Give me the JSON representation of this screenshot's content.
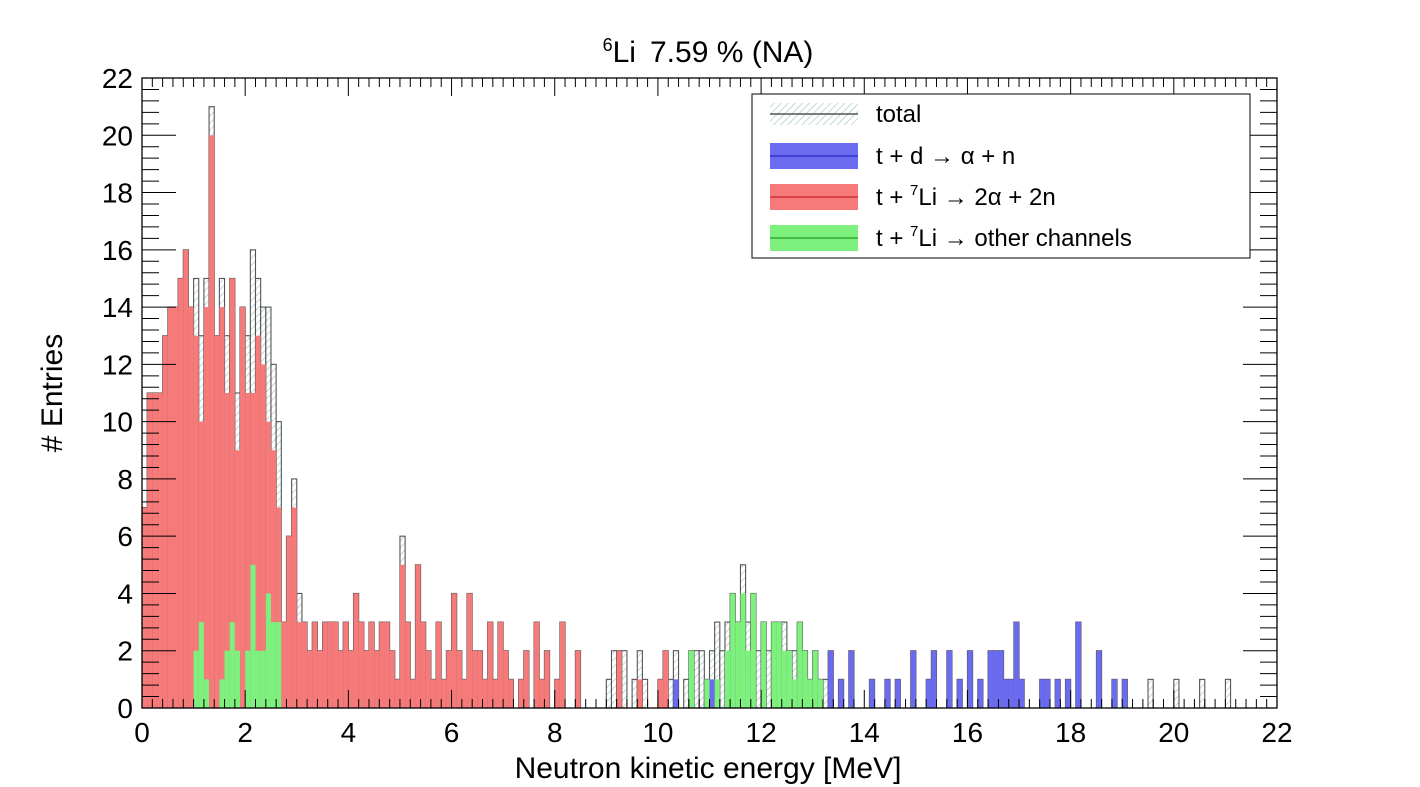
{
  "chart_data": {
    "type": "histogram",
    "title": "7.59 % (NA)",
    "title_isotope": "Li",
    "title_mass_number": "6",
    "xlabel": "Neutron kinetic energy [MeV]",
    "ylabel": "# Entries",
    "xlim": [
      0,
      22
    ],
    "ylim": [
      0,
      22
    ],
    "x_ticks": [
      "0",
      "2",
      "4",
      "6",
      "8",
      "10",
      "12",
      "14",
      "16",
      "18",
      "20",
      "22"
    ],
    "y_ticks": [
      "0",
      "2",
      "4",
      "6",
      "8",
      "10",
      "12",
      "14",
      "16",
      "18",
      "20",
      "22"
    ],
    "bin_width": 0.1,
    "grid": false,
    "legend_position": "top-right",
    "legend": [
      {
        "pre": "total",
        "sup": "",
        "post": "",
        "color": "#ffffff",
        "hatched": true
      },
      {
        "pre": "t + d → α + n",
        "sup": "",
        "post": "",
        "color": "#6b6bf0"
      },
      {
        "pre": "t + ",
        "sup": "7",
        "post": "Li → 2α + 2n",
        "color": "#f77a7a"
      },
      {
        "pre": "t + ",
        "sup": "7",
        "post": "Li → other channels",
        "color": "#7df07d"
      }
    ],
    "series": [
      {
        "name": "t + d → α + n",
        "color": "#6b6bf0",
        "bins": [
          [
            10.3,
            1
          ],
          [
            11.0,
            1
          ],
          [
            11.3,
            1
          ],
          [
            11.7,
            1
          ],
          [
            12.4,
            1
          ],
          [
            13.3,
            2
          ],
          [
            13.5,
            1
          ],
          [
            13.7,
            2
          ],
          [
            14.1,
            1
          ],
          [
            14.4,
            1
          ],
          [
            14.6,
            1
          ],
          [
            14.9,
            2
          ],
          [
            15.2,
            1
          ],
          [
            15.3,
            2
          ],
          [
            15.6,
            2
          ],
          [
            15.8,
            1
          ],
          [
            16.0,
            2
          ],
          [
            16.2,
            1
          ],
          [
            16.4,
            2
          ],
          [
            16.5,
            2
          ],
          [
            16.6,
            2
          ],
          [
            16.7,
            1
          ],
          [
            16.8,
            1
          ],
          [
            16.9,
            3
          ],
          [
            17.0,
            1
          ],
          [
            17.4,
            1
          ],
          [
            17.5,
            1
          ],
          [
            17.7,
            1
          ],
          [
            17.9,
            1
          ],
          [
            18.1,
            3
          ],
          [
            18.5,
            2
          ],
          [
            18.8,
            1
          ],
          [
            19.0,
            1
          ]
        ]
      },
      {
        "name": "t + 7Li → 2α + 2n",
        "color": "#f77a7a",
        "bins": [
          [
            0.0,
            7
          ],
          [
            0.1,
            11
          ],
          [
            0.2,
            11
          ],
          [
            0.3,
            11
          ],
          [
            0.4,
            13
          ],
          [
            0.5,
            14
          ],
          [
            0.6,
            14
          ],
          [
            0.7,
            15
          ],
          [
            0.8,
            16
          ],
          [
            0.9,
            14
          ],
          [
            1.0,
            13
          ],
          [
            1.1,
            10
          ],
          [
            1.2,
            14
          ],
          [
            1.3,
            20
          ],
          [
            1.4,
            13
          ],
          [
            1.5,
            14
          ],
          [
            1.6,
            11
          ],
          [
            1.7,
            15
          ],
          [
            1.8,
            9
          ],
          [
            1.9,
            14
          ],
          [
            2.0,
            11
          ],
          [
            2.1,
            11
          ],
          [
            2.2,
            13
          ],
          [
            2.3,
            12
          ],
          [
            2.4,
            10
          ],
          [
            2.5,
            9
          ],
          [
            2.6,
            7
          ],
          [
            2.7,
            3
          ],
          [
            2.8,
            6
          ],
          [
            2.9,
            7
          ],
          [
            3.0,
            3
          ],
          [
            3.1,
            3
          ],
          [
            3.2,
            2
          ],
          [
            3.3,
            3
          ],
          [
            3.4,
            2
          ],
          [
            3.5,
            3
          ],
          [
            3.6,
            3
          ],
          [
            3.7,
            3
          ],
          [
            3.8,
            2
          ],
          [
            3.9,
            3
          ],
          [
            4.0,
            2
          ],
          [
            4.1,
            4
          ],
          [
            4.2,
            3
          ],
          [
            4.3,
            2
          ],
          [
            4.4,
            3
          ],
          [
            4.5,
            2
          ],
          [
            4.6,
            3
          ],
          [
            4.7,
            3
          ],
          [
            4.8,
            2
          ],
          [
            4.9,
            1
          ],
          [
            5.0,
            5
          ],
          [
            5.1,
            3
          ],
          [
            5.2,
            1
          ],
          [
            5.3,
            5
          ],
          [
            5.4,
            3
          ],
          [
            5.5,
            2
          ],
          [
            5.6,
            1
          ],
          [
            5.7,
            3
          ],
          [
            5.8,
            1
          ],
          [
            5.9,
            2
          ],
          [
            6.0,
            4
          ],
          [
            6.1,
            2
          ],
          [
            6.2,
            1
          ],
          [
            6.3,
            4
          ],
          [
            6.4,
            2
          ],
          [
            6.5,
            2
          ],
          [
            6.6,
            1
          ],
          [
            6.7,
            3
          ],
          [
            6.8,
            1
          ],
          [
            6.9,
            3
          ],
          [
            7.0,
            2
          ],
          [
            7.1,
            1
          ],
          [
            7.3,
            1
          ],
          [
            7.4,
            2
          ],
          [
            7.6,
            3
          ],
          [
            7.7,
            1
          ],
          [
            7.8,
            2
          ],
          [
            8.0,
            1
          ],
          [
            8.1,
            3
          ],
          [
            8.4,
            2
          ],
          [
            9.2,
            2
          ],
          [
            9.6,
            1
          ],
          [
            10.0,
            1
          ],
          [
            10.1,
            2
          ]
        ]
      },
      {
        "name": "t + 7Li → other channels",
        "color": "#7df07d",
        "bins": [
          [
            1.0,
            2
          ],
          [
            1.1,
            3
          ],
          [
            1.2,
            1
          ],
          [
            1.5,
            1
          ],
          [
            1.6,
            2
          ],
          [
            1.7,
            3
          ],
          [
            1.8,
            2
          ],
          [
            2.0,
            2
          ],
          [
            2.1,
            5
          ],
          [
            2.2,
            2
          ],
          [
            2.3,
            2
          ],
          [
            2.4,
            4
          ],
          [
            2.5,
            3
          ],
          [
            2.6,
            3
          ],
          [
            10.6,
            2
          ],
          [
            10.9,
            1
          ],
          [
            11.1,
            1
          ],
          [
            11.3,
            2
          ],
          [
            11.4,
            4
          ],
          [
            11.5,
            3
          ],
          [
            11.6,
            4
          ],
          [
            11.7,
            2
          ],
          [
            11.8,
            4
          ],
          [
            12.0,
            3
          ],
          [
            12.2,
            3
          ],
          [
            12.3,
            3
          ],
          [
            12.4,
            2
          ],
          [
            12.5,
            2
          ],
          [
            12.6,
            1
          ],
          [
            12.7,
            3
          ],
          [
            12.8,
            2
          ],
          [
            12.9,
            1
          ],
          [
            13.0,
            2
          ],
          [
            13.1,
            1
          ]
        ]
      },
      {
        "name": "total",
        "color": "#555555",
        "bins": [
          [
            0.0,
            7
          ],
          [
            0.1,
            11
          ],
          [
            0.2,
            11
          ],
          [
            0.3,
            11
          ],
          [
            0.4,
            13
          ],
          [
            0.5,
            14
          ],
          [
            0.6,
            14
          ],
          [
            0.7,
            15
          ],
          [
            0.8,
            16
          ],
          [
            0.9,
            14
          ],
          [
            1.0,
            15
          ],
          [
            1.1,
            13
          ],
          [
            1.2,
            15
          ],
          [
            1.3,
            21
          ],
          [
            1.4,
            13
          ],
          [
            1.5,
            15
          ],
          [
            1.6,
            13
          ],
          [
            1.7,
            15
          ],
          [
            1.8,
            11
          ],
          [
            1.9,
            14
          ],
          [
            2.0,
            13
          ],
          [
            2.1,
            16
          ],
          [
            2.2,
            15
          ],
          [
            2.3,
            14
          ],
          [
            2.4,
            14
          ],
          [
            2.5,
            12
          ],
          [
            2.6,
            10
          ],
          [
            2.7,
            3
          ],
          [
            2.8,
            6
          ],
          [
            2.9,
            8
          ],
          [
            3.0,
            4
          ],
          [
            3.1,
            3
          ],
          [
            3.2,
            2
          ],
          [
            3.3,
            3
          ],
          [
            3.4,
            2
          ],
          [
            3.5,
            3
          ],
          [
            3.6,
            3
          ],
          [
            3.7,
            3
          ],
          [
            3.8,
            2
          ],
          [
            3.9,
            3
          ],
          [
            4.0,
            2
          ],
          [
            4.1,
            4
          ],
          [
            4.2,
            3
          ],
          [
            4.3,
            2
          ],
          [
            4.4,
            3
          ],
          [
            4.5,
            2
          ],
          [
            4.6,
            3
          ],
          [
            4.7,
            3
          ],
          [
            4.8,
            2
          ],
          [
            4.9,
            1
          ],
          [
            5.0,
            6
          ],
          [
            5.1,
            3
          ],
          [
            5.2,
            1
          ],
          [
            5.3,
            5
          ],
          [
            5.4,
            3
          ],
          [
            5.5,
            2
          ],
          [
            5.6,
            1
          ],
          [
            5.7,
            3
          ],
          [
            5.8,
            1
          ],
          [
            5.9,
            2
          ],
          [
            6.0,
            4
          ],
          [
            6.1,
            2
          ],
          [
            6.2,
            1
          ],
          [
            6.3,
            4
          ],
          [
            6.4,
            2
          ],
          [
            6.5,
            2
          ],
          [
            6.6,
            1
          ],
          [
            6.7,
            3
          ],
          [
            6.8,
            1
          ],
          [
            6.9,
            3
          ],
          [
            7.0,
            2
          ],
          [
            7.1,
            1
          ],
          [
            7.3,
            1
          ],
          [
            7.4,
            2
          ],
          [
            7.6,
            3
          ],
          [
            7.7,
            1
          ],
          [
            7.8,
            2
          ],
          [
            8.0,
            1
          ],
          [
            8.1,
            3
          ],
          [
            8.4,
            2
          ],
          [
            9.0,
            1
          ],
          [
            9.1,
            2
          ],
          [
            9.2,
            2
          ],
          [
            9.3,
            2
          ],
          [
            9.5,
            1
          ],
          [
            9.6,
            2
          ],
          [
            9.7,
            1
          ],
          [
            10.0,
            1
          ],
          [
            10.1,
            2
          ],
          [
            10.2,
            1
          ],
          [
            10.3,
            2
          ],
          [
            10.5,
            1
          ],
          [
            10.6,
            2
          ],
          [
            10.7,
            2
          ],
          [
            10.8,
            2
          ],
          [
            10.9,
            1
          ],
          [
            11.0,
            2
          ],
          [
            11.1,
            3
          ],
          [
            11.2,
            2
          ],
          [
            11.3,
            3
          ],
          [
            11.4,
            4
          ],
          [
            11.5,
            3
          ],
          [
            11.6,
            5
          ],
          [
            11.7,
            3
          ],
          [
            11.8,
            4
          ],
          [
            11.9,
            2
          ],
          [
            12.0,
            3
          ],
          [
            12.1,
            2
          ],
          [
            12.2,
            3
          ],
          [
            12.3,
            3
          ],
          [
            12.4,
            3
          ],
          [
            12.5,
            2
          ],
          [
            12.6,
            2
          ],
          [
            12.7,
            3
          ],
          [
            12.8,
            2
          ],
          [
            12.9,
            1
          ],
          [
            13.0,
            2
          ],
          [
            13.1,
            1
          ],
          [
            13.2,
            1
          ],
          [
            13.3,
            2
          ],
          [
            13.5,
            1
          ],
          [
            13.7,
            2
          ],
          [
            14.1,
            1
          ],
          [
            14.4,
            1
          ],
          [
            14.6,
            1
          ],
          [
            14.9,
            2
          ],
          [
            15.2,
            1
          ],
          [
            15.3,
            2
          ],
          [
            15.6,
            2
          ],
          [
            15.8,
            1
          ],
          [
            16.0,
            2
          ],
          [
            16.2,
            1
          ],
          [
            16.4,
            2
          ],
          [
            16.5,
            2
          ],
          [
            16.6,
            2
          ],
          [
            16.7,
            1
          ],
          [
            16.8,
            1
          ],
          [
            16.9,
            3
          ],
          [
            17.0,
            1
          ],
          [
            17.4,
            1
          ],
          [
            17.5,
            1
          ],
          [
            17.7,
            1
          ],
          [
            17.9,
            1
          ],
          [
            18.1,
            3
          ],
          [
            18.5,
            2
          ],
          [
            18.8,
            1
          ],
          [
            19.0,
            1
          ],
          [
            19.5,
            1
          ],
          [
            20.0,
            1
          ],
          [
            20.5,
            1
          ],
          [
            21.0,
            1
          ]
        ]
      }
    ]
  }
}
